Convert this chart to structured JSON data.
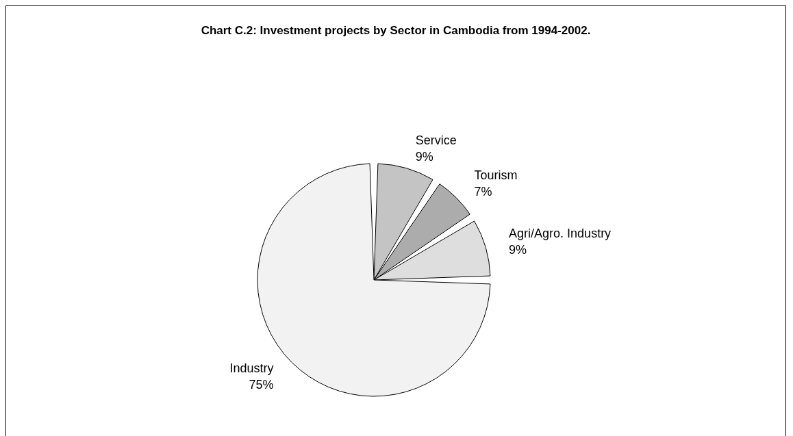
{
  "chart_data": {
    "type": "pie",
    "title": "Chart C.2: Investment projects by Sector in Cambodia from 1994-2002.",
    "categories": [
      "Service",
      "Tourism",
      "Agri/Agro. Industry",
      "Industry"
    ],
    "values": [
      9,
      7,
      9,
      75
    ],
    "value_labels": [
      "9%",
      "7%",
      "9%",
      "75%"
    ],
    "colors": [
      "#c4c4c4",
      "#acacac",
      "#dedede",
      "#f2f2f2"
    ]
  }
}
